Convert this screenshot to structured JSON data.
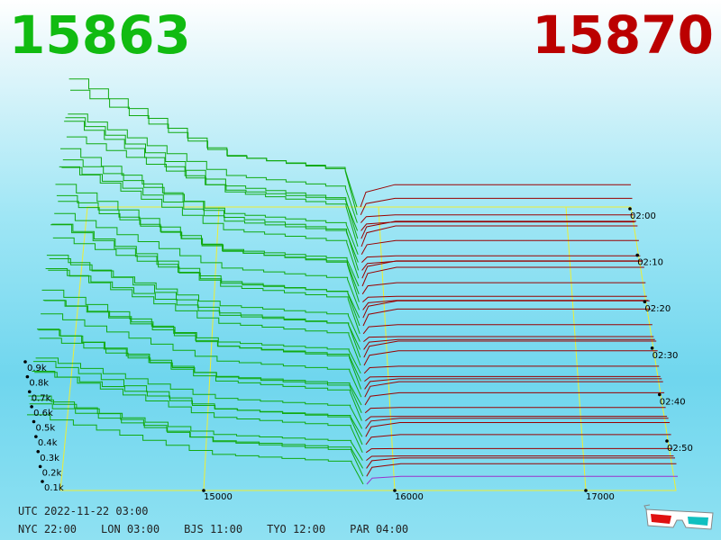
{
  "header": {
    "bid_price": "15863",
    "ask_price": "15870",
    "bid_color": "#11bb11",
    "ask_color": "#bb0000"
  },
  "footer": {
    "utc": "UTC 2022-11-22 03:00",
    "cities": [
      "NYC 22:00",
      "LON 03:00",
      "BJS 11:00",
      "TYO 12:00",
      "PAR 04:00"
    ]
  },
  "glasses_icon": "3d-glasses-icon",
  "chart_data": {
    "type": "area",
    "x_axis": {
      "ticks": [
        15000,
        16000,
        17000
      ]
    },
    "volume_axis": {
      "ticks": [
        "0.1k",
        "0.2k",
        "0.3k",
        "0.4k",
        "0.5k",
        "0.6k",
        "0.7k",
        "0.8k",
        "0.9k"
      ]
    },
    "time_axis": {
      "ticks": [
        "02:00",
        "02:10",
        "02:20",
        "02:30",
        "02:40",
        "02:50"
      ]
    },
    "series": [
      {
        "color": "#11aa11"
      },
      {
        "color": "#990000"
      }
    ],
    "latest_slice_color": "#9933cc",
    "grid_color": "#eeee33",
    "mid_price_range": [
      15863,
      15870
    ]
  }
}
